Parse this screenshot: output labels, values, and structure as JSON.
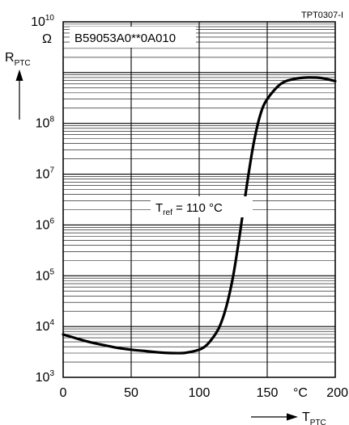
{
  "doc_code": "TPT0307-I",
  "part_label": "B59053A0**0A010",
  "ref_label": {
    "main": "T",
    "sub": "ref",
    "rest": " = 110 °C"
  },
  "y_axis": {
    "main": "R",
    "sub": "PTC",
    "unit": "Ω"
  },
  "x_axis": {
    "main": "T",
    "sub": "PTC",
    "unit": "°C"
  },
  "x_ticks": [
    "0",
    "50",
    "100",
    "150",
    "200"
  ],
  "y_ticks": [
    {
      "base": "10",
      "exp": "3"
    },
    {
      "base": "10",
      "exp": "4"
    },
    {
      "base": "10",
      "exp": "5"
    },
    {
      "base": "10",
      "exp": "6"
    },
    {
      "base": "10",
      "exp": "7"
    },
    {
      "base": "10",
      "exp": "8"
    },
    {
      "base": "10",
      "exp": "10"
    }
  ],
  "chart_data": {
    "type": "line",
    "title": "B59053A0**0A010",
    "xlabel": "T_PTC (°C)",
    "ylabel": "R_PTC (Ω)",
    "xlim": [
      0,
      200
    ],
    "ylim": [
      1000,
      10000000000
    ],
    "y_scale": "log",
    "grid": true,
    "series": [
      {
        "values": [
          {
            "x": 0,
            "y": 7000
          },
          {
            "x": 10,
            "y": 5800
          },
          {
            "x": 20,
            "y": 4900
          },
          {
            "x": 30,
            "y": 4300
          },
          {
            "x": 40,
            "y": 3800
          },
          {
            "x": 50,
            "y": 3500
          },
          {
            "x": 60,
            "y": 3300
          },
          {
            "x": 70,
            "y": 3100
          },
          {
            "x": 80,
            "y": 3000
          },
          {
            "x": 90,
            "y": 3050
          },
          {
            "x": 100,
            "y": 3500
          },
          {
            "x": 105,
            "y": 4200
          },
          {
            "x": 110,
            "y": 6000
          },
          {
            "x": 115,
            "y": 10000
          },
          {
            "x": 120,
            "y": 25000
          },
          {
            "x": 125,
            "y": 100000
          },
          {
            "x": 130,
            "y": 700000
          },
          {
            "x": 135,
            "y": 6000000
          },
          {
            "x": 140,
            "y": 40000000
          },
          {
            "x": 145,
            "y": 150000000
          },
          {
            "x": 150,
            "y": 300000000
          },
          {
            "x": 160,
            "y": 600000000
          },
          {
            "x": 170,
            "y": 750000000
          },
          {
            "x": 180,
            "y": 800000000
          },
          {
            "x": 190,
            "y": 780000000
          },
          {
            "x": 200,
            "y": 680000000
          }
        ]
      }
    ]
  }
}
